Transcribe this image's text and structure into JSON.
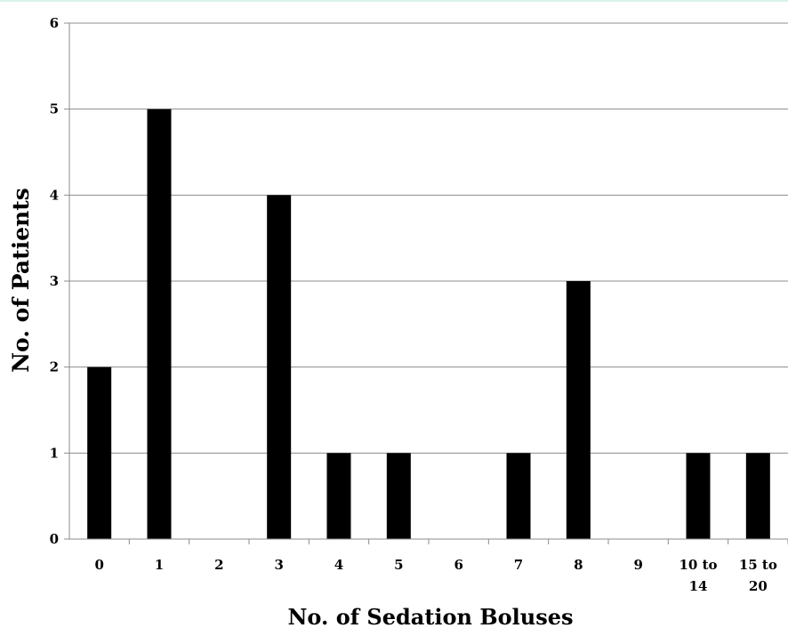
{
  "chart_data": {
    "type": "bar",
    "title": "",
    "xlabel": "No. of Sedation Boluses",
    "ylabel": "No. of Patients",
    "categories": [
      "0",
      "1",
      "2",
      "3",
      "4",
      "5",
      "6",
      "7",
      "8",
      "9",
      "10 to 14",
      "15 to 20"
    ],
    "category_lines": [
      [
        "0"
      ],
      [
        "1"
      ],
      [
        "2"
      ],
      [
        "3"
      ],
      [
        "4"
      ],
      [
        "5"
      ],
      [
        "6"
      ],
      [
        "7"
      ],
      [
        "8"
      ],
      [
        "9"
      ],
      [
        "10 to",
        "14"
      ],
      [
        "15 to",
        "20"
      ]
    ],
    "values": [
      2,
      5,
      0,
      4,
      1,
      1,
      0,
      1,
      3,
      0,
      1,
      1
    ],
    "ylim": [
      0,
      6
    ],
    "yticks": [
      0,
      1,
      2,
      3,
      4,
      5,
      6
    ],
    "grid": true,
    "legend": "none",
    "colors": {
      "bar": "#000000",
      "grid": "#8c8c8c",
      "axis": "#8c8c8c",
      "text": "#000000"
    }
  }
}
